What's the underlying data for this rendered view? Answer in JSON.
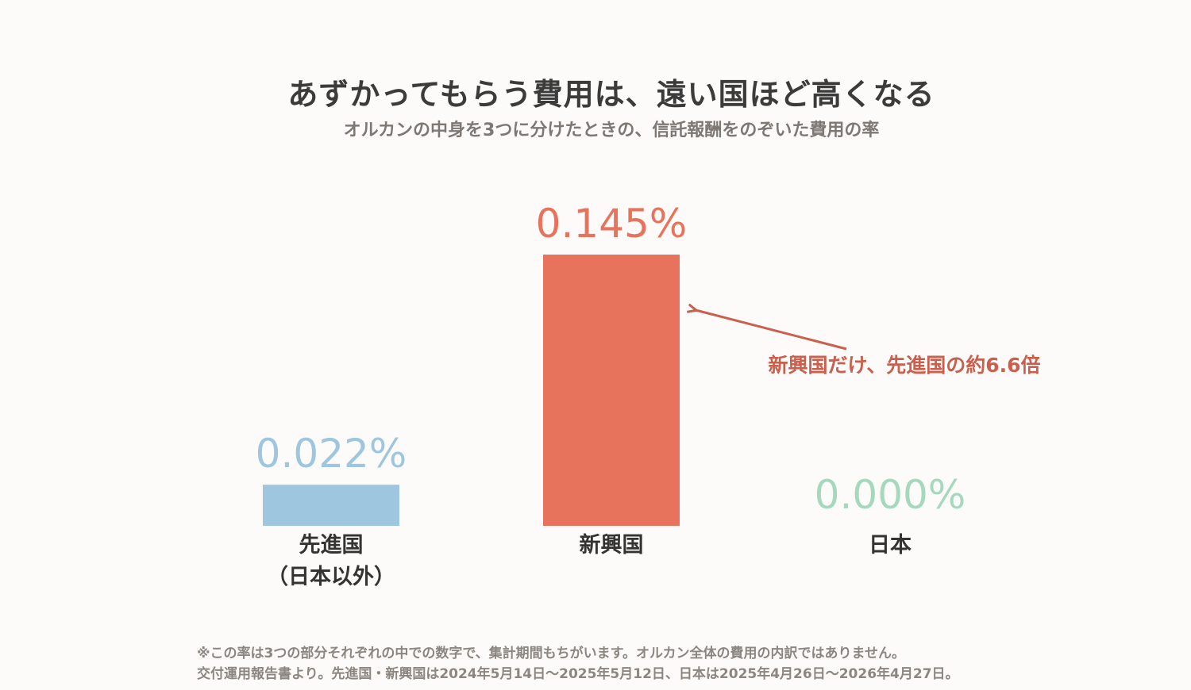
{
  "title": "あずかってもらう費用は、遠い国ほど高くなる",
  "subtitle": "オルカンの中身を3つに分けたときの、信託報酬をのぞいた費用の率",
  "annotation": "新興国だけ、先進国の約6.6倍",
  "notes": {
    "line1": "※この率は3つの部分それぞれの中での数字で、集計期間もちがいます。オルカン全体の費用の内訳ではありません。",
    "line2": "交付運用報告書より。先進国・新興国は2024年5月14日〜2025年5月12日、日本は2025年4月26日〜2026年4月27日。"
  },
  "chart_data": {
    "type": "bar",
    "categories": [
      [
        "先進国",
        "（日本以外）"
      ],
      [
        "新興国"
      ],
      [
        "日本"
      ]
    ],
    "values": [
      0.022,
      0.145,
      0.0
    ],
    "value_labels": [
      "0.022%",
      "0.145%",
      "0.000%"
    ],
    "colors": [
      "#9fc6df",
      "#e8735c",
      "#a6d8bd"
    ],
    "ylim": [
      0,
      0.145
    ],
    "grid": false,
    "axes_visible": false
  }
}
